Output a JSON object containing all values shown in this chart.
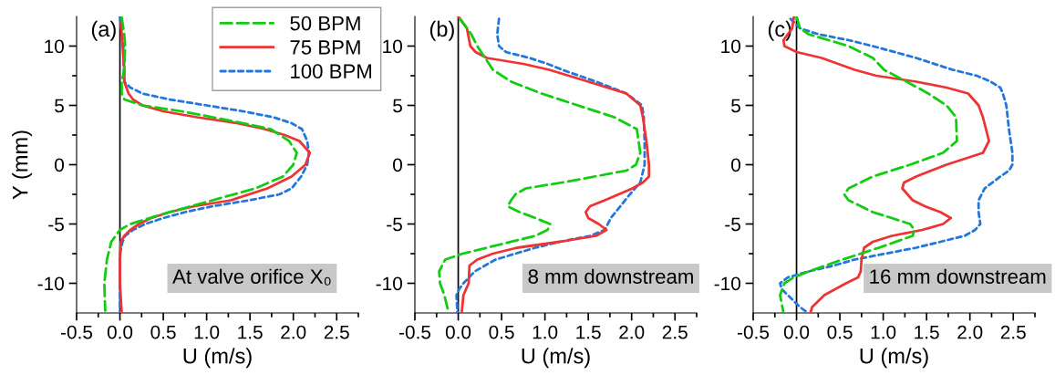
{
  "chart_data": [
    {
      "type": "line",
      "xlabel": "U (m/s)",
      "ylabel": "Y (mm)",
      "annotations": [
        "(a)",
        "At valve orifice X₀"
      ],
      "legend": "top right",
      "grid": false,
      "xlim": [
        -0.5,
        2.75
      ],
      "ylim": [
        -12.5,
        12.5
      ],
      "xticks": [
        -0.5,
        {
          "value": -0.25,
          "label": null
        },
        {
          "value": 0,
          "label": "0.0"
        },
        {
          "value": 0.25,
          "label": null
        },
        0.5,
        {
          "value": 0.75,
          "label": null
        },
        {
          "value": 1,
          "label": "1.0"
        },
        {
          "value": 1.25,
          "label": null
        },
        1.5,
        {
          "value": 1.75,
          "label": null
        },
        {
          "value": 2,
          "label": "2.0"
        },
        {
          "value": 2.25,
          "label": null
        },
        2.5,
        {
          "value": 2.75,
          "label": null
        }
      ],
      "yticks": [
        -10,
        {
          "value": -7.5,
          "label": null
        },
        -5,
        {
          "value": -2.5,
          "label": null
        },
        0,
        {
          "value": 2.5,
          "label": null
        },
        5,
        {
          "value": 7.5,
          "label": null
        },
        10
      ],
      "ref_lines": [
        {
          "axis": "x",
          "value": 0,
          "color": "#000000"
        }
      ],
      "series": [
        {
          "name": "50 BPM",
          "color": "#11cc11",
          "line_style": "dashed",
          "x": [
            0.02,
            0.05,
            0.06,
            0.05,
            0.02,
            0.02,
            0.05,
            0.26,
            0.71,
            1.07,
            1.42,
            1.74,
            1.95,
            2.04,
            2.0,
            1.88,
            1.56,
            1.07,
            0.57,
            0.12,
            0,
            -0.1,
            -0.15,
            -0.18,
            -0.17
          ],
          "values": [
            12.4,
            11,
            10,
            8,
            7,
            6,
            5.5,
            5,
            4.5,
            4,
            3.5,
            3,
            2,
            1,
            0,
            -1,
            -2,
            -3,
            -4,
            -5,
            -5.5,
            -6.5,
            -8,
            -10,
            -12.3
          ]
        },
        {
          "name": "75 BPM",
          "color": "#ee3333",
          "line_style": "solid",
          "x": [
            0.01,
            0.03,
            0.05,
            0.05,
            0.1,
            0.15,
            0.26,
            0.5,
            0.89,
            1.35,
            1.67,
            1.9,
            2.07,
            2.19,
            2.14,
            1.98,
            1.7,
            1.28,
            0.86,
            0.57,
            0.36,
            0.22,
            0.12,
            0.05,
            0.01,
            0,
            0,
            0.02
          ],
          "values": [
            12,
            10,
            8,
            7,
            6,
            5.5,
            5,
            4.5,
            4,
            3.5,
            3,
            2.5,
            2,
            1,
            0,
            -1,
            -2,
            -3,
            -3.5,
            -4,
            -4.5,
            -5,
            -5.5,
            -6,
            -6.5,
            -8,
            -10,
            -12.5
          ]
        },
        {
          "name": "100 BPM",
          "color": "#2277dd",
          "line_style": "dotted",
          "x": [
            0.0,
            0.04,
            0.05,
            0.12,
            0.26,
            0.57,
            1.0,
            1.42,
            1.77,
            1.98,
            2.1,
            2.16,
            2.18,
            2.16,
            2.09,
            1.98,
            1.84,
            1.49,
            1.07,
            0.75,
            0.5,
            0.29,
            0.15,
            0.06,
            0.03,
            0,
            0,
            0
          ],
          "values": [
            12.5,
            10,
            7,
            6.5,
            6,
            5.5,
            5,
            4.5,
            4,
            3.5,
            3,
            2,
            1,
            0,
            -1,
            -2,
            -2.5,
            -3,
            -3.5,
            -4,
            -4.5,
            -5,
            -5.5,
            -6,
            -6.5,
            -7.5,
            -10,
            -12.5
          ]
        }
      ]
    },
    {
      "type": "line",
      "xlabel": "U (m/s)",
      "annotations": [
        "(b)",
        "8 mm downstream"
      ],
      "grid": false,
      "xlim": [
        -0.5,
        2.75
      ],
      "ylim": [
        -12.5,
        12.5
      ],
      "xticks": [
        -0.5,
        {
          "value": -0.25,
          "label": null
        },
        {
          "value": 0,
          "label": "0.0"
        },
        {
          "value": 0.25,
          "label": null
        },
        0.5,
        {
          "value": 0.75,
          "label": null
        },
        {
          "value": 1,
          "label": "1.0"
        },
        {
          "value": 1.25,
          "label": null
        },
        1.5,
        {
          "value": 1.75,
          "label": null
        },
        {
          "value": 2,
          "label": "2.0"
        },
        {
          "value": 2.25,
          "label": null
        },
        2.5,
        {
          "value": 2.75,
          "label": null
        }
      ],
      "yticks": [
        -10,
        {
          "value": -7.5,
          "label": null
        },
        -5,
        {
          "value": -2.5,
          "label": null
        },
        0,
        {
          "value": 2.5,
          "label": null
        },
        5,
        {
          "value": 7.5,
          "label": null
        },
        10
      ],
      "ref_lines": [
        {
          "axis": "x",
          "value": 0,
          "color": "#000000"
        }
      ],
      "series": [
        {
          "color": "#11cc11",
          "line_style": "dashed",
          "x": [
            0.02,
            0.15,
            0.22,
            0.31,
            0.4,
            0.61,
            0.96,
            1.38,
            1.8,
            2.06,
            2.1,
            2.05,
            1.94,
            1.2,
            0.78,
            0.66,
            0.61,
            0.57,
            0.71,
            0.89,
            1.06,
            1.03,
            0.89,
            0.33,
            0.05,
            -0.15,
            -0.22,
            -0.21,
            -0.16,
            -0.11
          ],
          "values": [
            12.3,
            11,
            10,
            9,
            8,
            7,
            6,
            5,
            4,
            3,
            1,
            0,
            -0.5,
            -1.5,
            -2,
            -2.5,
            -3,
            -3.5,
            -4,
            -4.5,
            -5,
            -5.5,
            -6,
            -7,
            -7.5,
            -8,
            -9,
            -10,
            -11,
            -12.5
          ]
        },
        {
          "color": "#ee3333",
          "line_style": "solid",
          "x": [
            0,
            0.1,
            0.14,
            0.2,
            0.33,
            0.75,
            1.05,
            1.5,
            1.94,
            2.1,
            2.13,
            2.17,
            2.2,
            2.2,
            2.13,
            2.01,
            1.69,
            1.52,
            1.47,
            1.5,
            1.62,
            1.71,
            1.59,
            1.17,
            0.68,
            0.4,
            0.22,
            0.13,
            0.12,
            0.06,
            0.04
          ],
          "values": [
            12.5,
            11.5,
            10,
            9.5,
            9,
            8.5,
            8,
            7,
            6,
            5,
            4,
            2,
            0,
            -1,
            -1.5,
            -2,
            -3,
            -3.5,
            -4,
            -4.5,
            -5,
            -5.5,
            -6,
            -6.5,
            -7,
            -7.5,
            -8,
            -8.5,
            -10,
            -11,
            -12.5
          ]
        },
        {
          "color": "#2277dd",
          "line_style": "dotted",
          "x": [
            0.47,
            0.45,
            0.47,
            0.55,
            0.82,
            1.03,
            1.2,
            1.59,
            1.94,
            2.12,
            2.14,
            2.15,
            2.15,
            2.1,
            1.98,
            1.87,
            1.76,
            1.69,
            1.52,
            1.17,
            0.89,
            0.43,
            0.19,
            0.06,
            0.01,
            -0.02,
            -0.01
          ],
          "values": [
            12.3,
            11,
            10,
            9.5,
            9,
            8.5,
            8,
            7,
            6,
            5,
            4,
            2,
            0,
            -1.5,
            -2.5,
            -3.5,
            -4.5,
            -5.5,
            -6,
            -6.5,
            -7,
            -8,
            -9,
            -10,
            -10.5,
            -11,
            -12.5
          ]
        }
      ]
    },
    {
      "type": "line",
      "xlabel": "U (m/s)",
      "annotations": [
        "(c)",
        "16 mm downstream"
      ],
      "grid": false,
      "xlim": [
        -0.5,
        2.75
      ],
      "ylim": [
        -12.5,
        12.5
      ],
      "xticks": [
        -0.5,
        {
          "value": -0.25,
          "label": null
        },
        {
          "value": 0,
          "label": "0.0"
        },
        {
          "value": 0.25,
          "label": null
        },
        0.5,
        {
          "value": 0.75,
          "label": null
        },
        {
          "value": 1,
          "label": "1.0"
        },
        {
          "value": 1.25,
          "label": null
        },
        1.5,
        {
          "value": 1.75,
          "label": null
        },
        {
          "value": 2,
          "label": "2.0"
        },
        {
          "value": 2.25,
          "label": null
        },
        2.5,
        {
          "value": 2.75,
          "label": null
        }
      ],
      "yticks": [
        -10,
        {
          "value": -7.5,
          "label": null
        },
        -5,
        {
          "value": -2.5,
          "label": null
        },
        0,
        {
          "value": 2.5,
          "label": null
        },
        5,
        {
          "value": 7.5,
          "label": null
        },
        10
      ],
      "ref_lines": [
        {
          "axis": "x",
          "value": 0,
          "color": "#000000"
        }
      ],
      "series": [
        {
          "color": "#11cc11",
          "line_style": "dashed",
          "x": [
            0,
            0.04,
            0.14,
            0.6,
            0.88,
            1.01,
            1.27,
            1.52,
            1.73,
            1.84,
            1.85,
            1.69,
            1.31,
            0.88,
            0.6,
            0.55,
            0.6,
            0.88,
            1.1,
            1.31,
            1.36,
            1.34,
            0.95,
            0.53,
            0.14,
            -0.03,
            -0.14,
            -0.19,
            -0.15
          ],
          "values": [
            12.5,
            11.5,
            11,
            10,
            9,
            8,
            7,
            6,
            5,
            4,
            2,
            1,
            0,
            -1,
            -2,
            -2.5,
            -3,
            -4,
            -4.5,
            -5,
            -5.5,
            -6,
            -7,
            -8,
            -9,
            -9.5,
            -10,
            -11,
            -12.5
          ]
        },
        {
          "color": "#ee3333",
          "line_style": "solid",
          "x": [
            -0.03,
            -0.05,
            -0.15,
            -0.14,
            0,
            0.29,
            0.67,
            0.92,
            1.38,
            1.73,
            1.98,
            2.1,
            2.15,
            2.22,
            2.15,
            1.73,
            1.38,
            1.24,
            1.22,
            1.34,
            1.48,
            1.66,
            1.78,
            1.69,
            1.45,
            1.1,
            0.88,
            0.78,
            0.75,
            0.74,
            0.71,
            0.57,
            0.32,
            0.18,
            0.16
          ],
          "values": [
            12.5,
            11.5,
            10.5,
            10,
            9.5,
            9,
            8,
            7.5,
            7,
            6.5,
            6,
            5,
            4,
            2,
            1,
            0,
            -1,
            -1.5,
            -2,
            -3,
            -3.5,
            -4,
            -4.5,
            -5,
            -5.5,
            -6,
            -6.5,
            -7,
            -8,
            -9,
            -9.5,
            -10,
            -11,
            -12,
            -12.5
          ]
        },
        {
          "color": "#2277dd",
          "line_style": "dotted",
          "x": [
            -0.07,
            0.04,
            0.25,
            0.6,
            0.88,
            1.38,
            1.8,
            2.08,
            2.24,
            2.35,
            2.38,
            2.42,
            2.45,
            2.49,
            2.49,
            2.45,
            2.35,
            2.17,
            2.1,
            2.1,
            2.12,
            2.06,
            1.94,
            1.66,
            1.38,
            0.67,
            0.43,
            0.14,
            -0.1,
            -0.19,
            -0.17,
            -0.1,
            0.04,
            0.13
          ],
          "values": [
            12.3,
            11.5,
            11,
            10.5,
            10,
            9,
            8,
            7.5,
            7,
            6.5,
            6,
            5,
            3,
            1,
            0,
            -0.5,
            -1,
            -2,
            -3,
            -4,
            -5,
            -5.5,
            -6,
            -6.5,
            -7,
            -8,
            -8.5,
            -9,
            -9.5,
            -10,
            -10.5,
            -11,
            -12,
            -12.5
          ]
        }
      ]
    }
  ]
}
